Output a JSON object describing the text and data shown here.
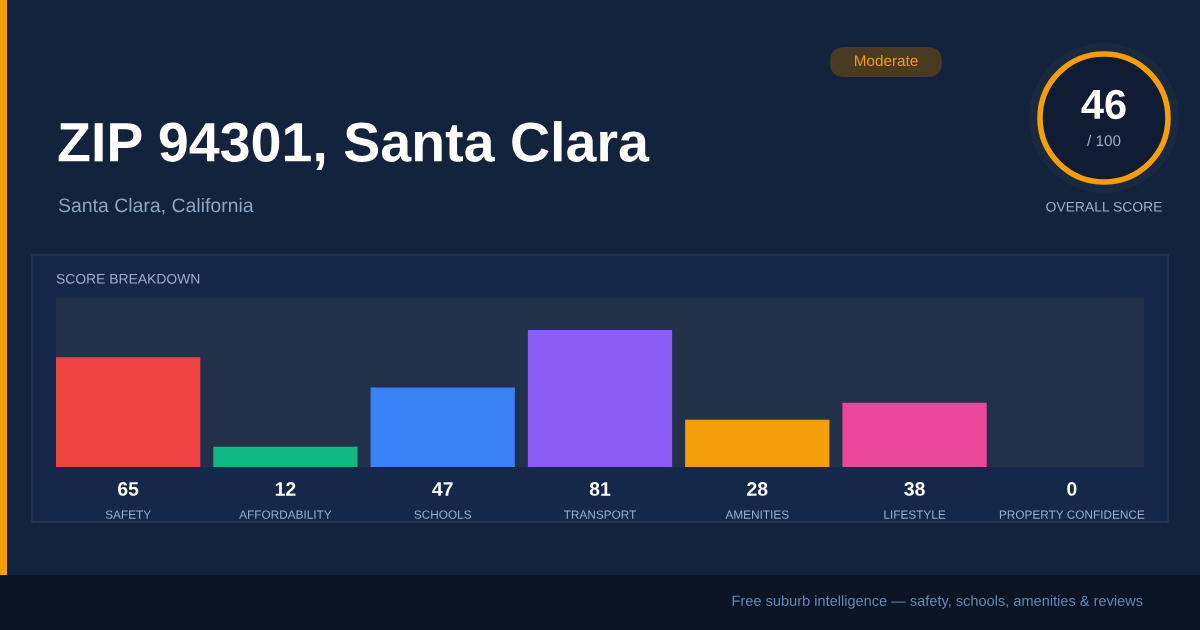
{
  "chart_data": {
    "type": "bar",
    "title": "ZIP 94301, Santa Clara",
    "subtitle": "Santa Clara, California",
    "categories": [
      "SAFETY",
      "AFFORDABILITY",
      "SCHOOLS",
      "TRANSPORT",
      "AMENITIES",
      "LIFESTYLE",
      "PROPERTY CONFIDENCE"
    ],
    "values": [
      65,
      12,
      47,
      81,
      28,
      38,
      0
    ],
    "colors": [
      "#ef4444",
      "#10b981",
      "#3b82f6",
      "#8b5cf6",
      "#f59e0b",
      "#ec4899",
      "#1d6fd8"
    ],
    "ylim": [
      0,
      100
    ],
    "data_labels": true,
    "annotations": [
      "SCORE BREAKDOWN",
      "Moderate",
      "46",
      "/ 100",
      "OVERALL SCORE",
      "Free suburb intelligence — safety, schools, amenities & reviews"
    ]
  }
}
